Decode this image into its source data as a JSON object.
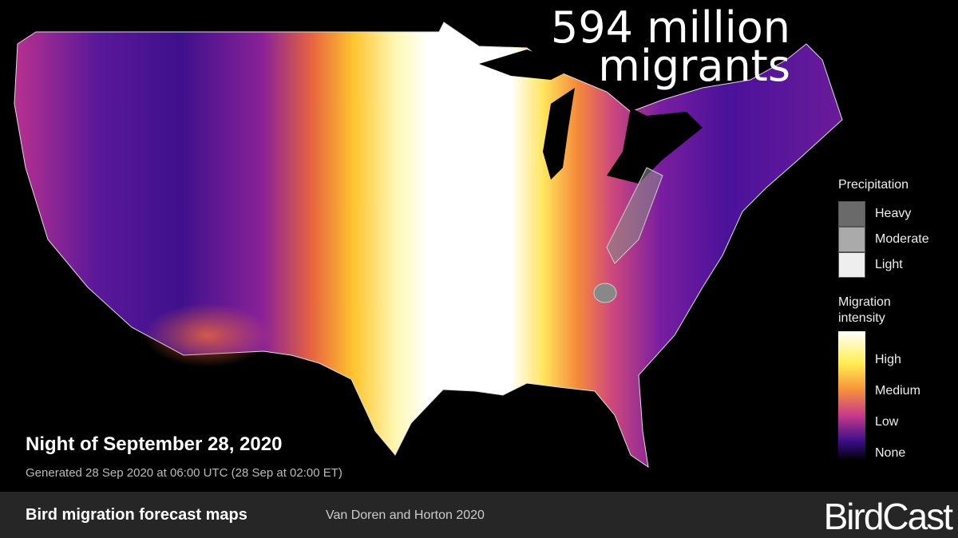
{
  "headline": [
    "594 million",
    "migrants"
  ],
  "precipitation_legend": {
    "title": "Precipitation",
    "items": [
      "Heavy",
      "Moderate",
      "Light"
    ]
  },
  "intensity_legend": {
    "title": "Migration intensity",
    "items": [
      "High",
      "Medium",
      "Low",
      "None"
    ]
  },
  "date_title": "Night of September 28, 2020",
  "generated": "Generated 28 Sep 2020 at 06:00 UTC (28 Sep at 02:00 ET)",
  "footer": {
    "title": "Bird migration forecast maps",
    "credit": "Van Doren and Horton 2020",
    "logo": "BirdCast"
  }
}
